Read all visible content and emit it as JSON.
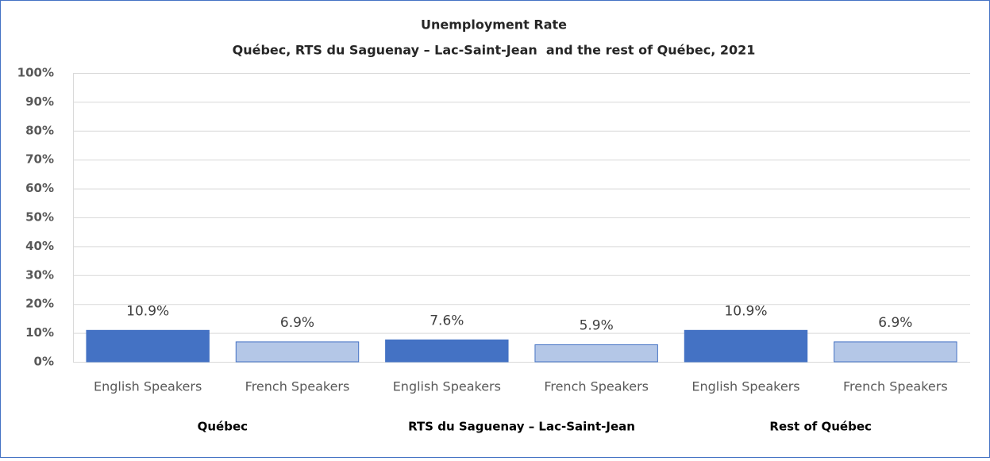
{
  "chart_data": {
    "type": "bar",
    "title": "Unemployment Rate",
    "subtitle": "Québec, RTS du Saguenay – Lac-Saint-Jean  and the rest of Québec, 2021",
    "categories": [
      "English Speakers",
      "French Speakers",
      "English Speakers",
      "French Speakers",
      "English Speakers",
      "French Speakers"
    ],
    "groups": [
      "Québec",
      "RTS du Saguenay – Lac-Saint-Jean",
      "Rest of Québec"
    ],
    "values": [
      10.9,
      6.9,
      7.6,
      5.9,
      10.9,
      6.9
    ],
    "value_labels": [
      "10.9%",
      "6.9%",
      "7.6%",
      "5.9%",
      "10.9%",
      "6.9%"
    ],
    "colors": [
      "#4472c4",
      "#b4c7e7",
      "#4472c4",
      "#b4c7e7",
      "#4472c4",
      "#b4c7e7"
    ],
    "ylim": [
      0,
      100
    ],
    "yticks": [
      {
        "value": 0,
        "label": "0%"
      },
      {
        "value": 10,
        "label": "10%"
      },
      {
        "value": 20,
        "label": "20%"
      },
      {
        "value": 30,
        "label": "30%"
      },
      {
        "value": 40,
        "label": "40%"
      },
      {
        "value": 50,
        "label": "50%"
      },
      {
        "value": 60,
        "label": "60%"
      },
      {
        "value": 70,
        "label": "70%"
      },
      {
        "value": 80,
        "label": "80%"
      },
      {
        "value": 90,
        "label": "90%"
      },
      {
        "value": 100,
        "label": "100%"
      }
    ],
    "grid": true
  }
}
